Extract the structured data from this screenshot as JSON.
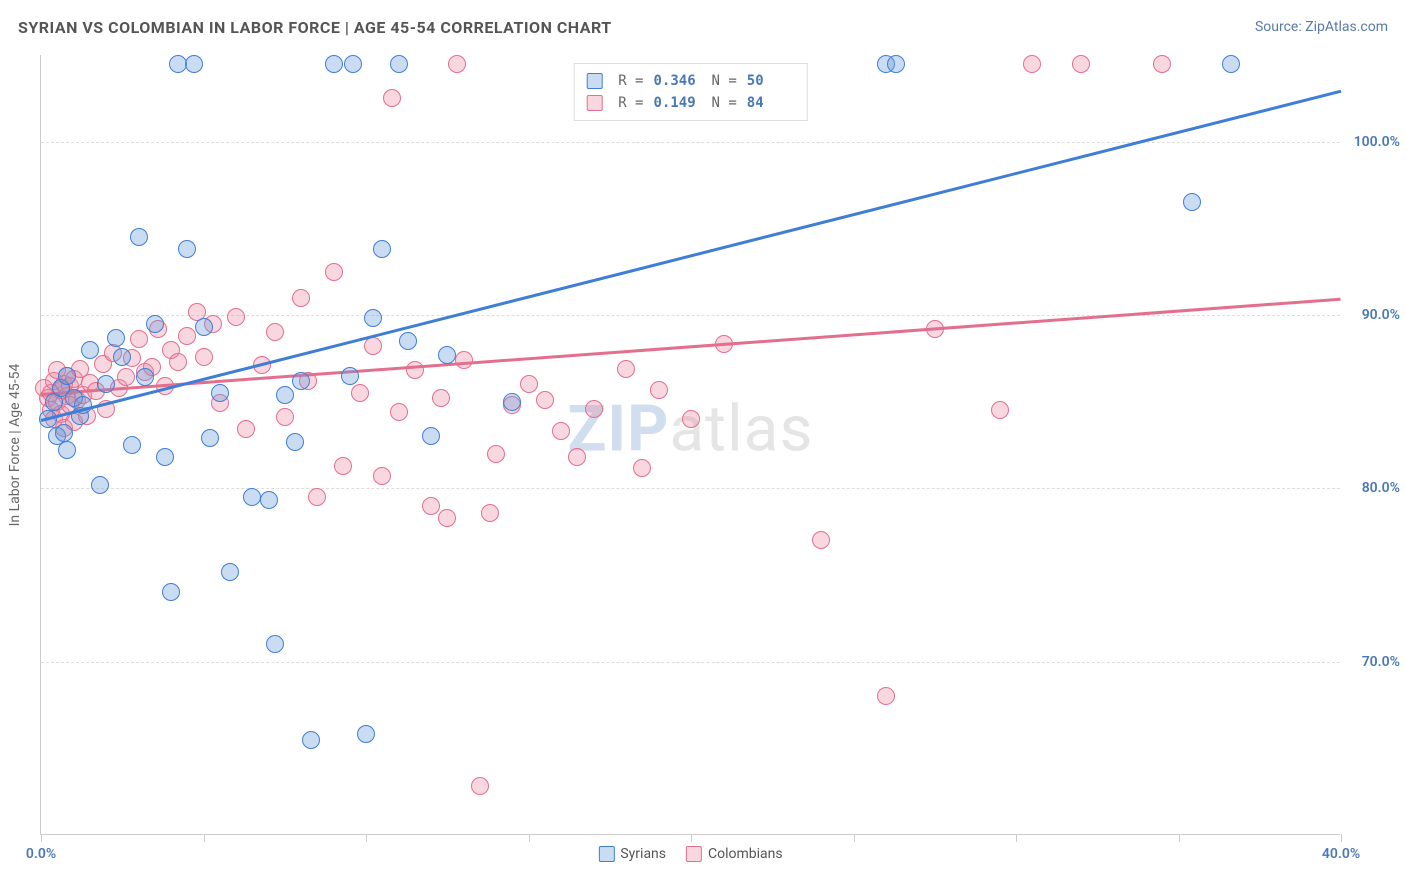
{
  "header": {
    "title": "SYRIAN VS COLOMBIAN IN LABOR FORCE | AGE 45-54 CORRELATION CHART",
    "source_prefix": "Source: ",
    "source_name": "ZipAtlas.com"
  },
  "watermark": {
    "zip": "ZIP",
    "atlas": "atlas"
  },
  "chart": {
    "type": "scatter",
    "background_color": "#ffffff",
    "grid_color": "#dddddd",
    "axis_color": "#cccccc",
    "value_color": "#4a78b5",
    "xlim": [
      0,
      40
    ],
    "ylim": [
      60,
      105
    ],
    "xticks": [
      0,
      5,
      10,
      15,
      20,
      25,
      30,
      35,
      40
    ],
    "xtick_labels": {
      "0": "0.0%",
      "40": "40.0%"
    },
    "yticks": [
      70,
      80,
      90,
      100
    ],
    "ytick_labels": {
      "70": "70.0%",
      "80": "80.0%",
      "90": "90.0%",
      "100": "100.0%"
    },
    "yaxis_title": "In Labor Force | Age 45-54",
    "marker_radius": 9,
    "marker_border_width": 1.5,
    "marker_fill_opacity": 0.35,
    "line_width": 2.5,
    "label_fontsize": 14,
    "title_fontsize": 15
  },
  "series": {
    "syrians": {
      "label": "Syrians",
      "color": "#3f7ed6",
      "fill": "rgba(99,155,219,0.35)",
      "R": "0.346",
      "N": "50",
      "regression": {
        "x1": 0,
        "y1": 84.0,
        "x2": 40,
        "y2": 103.0
      },
      "points": [
        [
          0.2,
          84
        ],
        [
          0.4,
          85
        ],
        [
          0.5,
          83
        ],
        [
          0.6,
          85.8
        ],
        [
          0.7,
          83.2
        ],
        [
          0.8,
          86.5
        ],
        [
          0.8,
          82.2
        ],
        [
          1.0,
          85.2
        ],
        [
          1.2,
          84.2
        ],
        [
          1.3,
          84.8
        ],
        [
          1.5,
          88
        ],
        [
          1.8,
          80.2
        ],
        [
          2.0,
          86
        ],
        [
          2.3,
          88.7
        ],
        [
          2.5,
          87.6
        ],
        [
          2.8,
          82.5
        ],
        [
          3.0,
          94.5
        ],
        [
          3.2,
          86.4
        ],
        [
          3.5,
          89.5
        ],
        [
          3.8,
          81.8
        ],
        [
          4.0,
          74
        ],
        [
          4.2,
          104.5
        ],
        [
          4.5,
          93.8
        ],
        [
          4.7,
          104.5
        ],
        [
          5.0,
          89.3
        ],
        [
          5.2,
          82.9
        ],
        [
          5.5,
          85.5
        ],
        [
          5.8,
          75.2
        ],
        [
          6.5,
          79.5
        ],
        [
          7.0,
          79.3
        ],
        [
          7.2,
          71
        ],
        [
          7.5,
          85.4
        ],
        [
          7.8,
          82.7
        ],
        [
          8.0,
          86.2
        ],
        [
          8.3,
          65.5
        ],
        [
          9.0,
          104.5
        ],
        [
          9.5,
          86.5
        ],
        [
          9.6,
          104.5
        ],
        [
          10.0,
          65.8
        ],
        [
          10.2,
          89.8
        ],
        [
          10.5,
          93.8
        ],
        [
          11.0,
          104.5
        ],
        [
          11.3,
          88.5
        ],
        [
          12.0,
          83.0
        ],
        [
          12.5,
          87.7
        ],
        [
          14.5,
          85.0
        ],
        [
          26.0,
          104.5
        ],
        [
          26.3,
          104.5
        ],
        [
          35.4,
          96.5
        ],
        [
          36.6,
          104.5
        ]
      ]
    },
    "colombians": {
      "label": "Colombians",
      "color": "#e36f8e",
      "fill": "rgba(235,140,165,0.35)",
      "R": "0.149",
      "N": "84",
      "regression": {
        "x1": 0,
        "y1": 85.5,
        "x2": 40,
        "y2": 91.0
      },
      "points": [
        [
          0.1,
          85.8
        ],
        [
          0.2,
          85.2
        ],
        [
          0.3,
          84.5
        ],
        [
          0.3,
          85.5
        ],
        [
          0.4,
          86.2
        ],
        [
          0.4,
          84.0
        ],
        [
          0.5,
          85.0
        ],
        [
          0.5,
          86.8
        ],
        [
          0.6,
          84.3
        ],
        [
          0.6,
          85.7
        ],
        [
          0.7,
          86.0
        ],
        [
          0.7,
          83.5
        ],
        [
          0.8,
          85.3
        ],
        [
          0.8,
          86.5
        ],
        [
          0.9,
          84.8
        ],
        [
          0.9,
          85.9
        ],
        [
          1.0,
          86.3
        ],
        [
          1.0,
          83.8
        ],
        [
          1.1,
          85.1
        ],
        [
          1.2,
          86.9
        ],
        [
          1.3,
          85.4
        ],
        [
          1.4,
          84.2
        ],
        [
          1.5,
          86.1
        ],
        [
          1.7,
          85.6
        ],
        [
          1.9,
          87.2
        ],
        [
          2.0,
          84.6
        ],
        [
          2.2,
          87.8
        ],
        [
          2.4,
          85.8
        ],
        [
          2.6,
          86.4
        ],
        [
          2.8,
          87.5
        ],
        [
          3.0,
          88.6
        ],
        [
          3.2,
          86.7
        ],
        [
          3.4,
          87.0
        ],
        [
          3.6,
          89.2
        ],
        [
          3.8,
          85.9
        ],
        [
          4.0,
          88.0
        ],
        [
          4.2,
          87.3
        ],
        [
          4.5,
          88.8
        ],
        [
          4.8,
          90.2
        ],
        [
          5.0,
          87.6
        ],
        [
          5.3,
          89.5
        ],
        [
          5.5,
          84.9
        ],
        [
          6.0,
          89.9
        ],
        [
          6.3,
          83.4
        ],
        [
          6.8,
          87.1
        ],
        [
          7.2,
          89.0
        ],
        [
          7.5,
          84.1
        ],
        [
          8.0,
          91.0
        ],
        [
          8.2,
          86.2
        ],
        [
          8.5,
          79.5
        ],
        [
          9.0,
          92.5
        ],
        [
          9.3,
          81.3
        ],
        [
          9.8,
          85.5
        ],
        [
          10.2,
          88.2
        ],
        [
          10.5,
          80.7
        ],
        [
          10.8,
          102.5
        ],
        [
          11.0,
          84.4
        ],
        [
          11.5,
          86.8
        ],
        [
          12.0,
          79.0
        ],
        [
          12.3,
          85.2
        ],
        [
          12.5,
          78.3
        ],
        [
          12.8,
          104.5
        ],
        [
          13.0,
          87.4
        ],
        [
          13.5,
          62.8
        ],
        [
          13.8,
          78.6
        ],
        [
          14.0,
          82.0
        ],
        [
          14.5,
          84.8
        ],
        [
          15.0,
          86.0
        ],
        [
          15.5,
          85.1
        ],
        [
          16.0,
          83.3
        ],
        [
          16.5,
          81.8
        ],
        [
          17.0,
          84.6
        ],
        [
          18.0,
          86.9
        ],
        [
          18.5,
          81.2
        ],
        [
          19.0,
          85.7
        ],
        [
          20.0,
          84.0
        ],
        [
          21.0,
          88.3
        ],
        [
          24.0,
          77.0
        ],
        [
          26.0,
          68.0
        ],
        [
          27.5,
          89.2
        ],
        [
          29.5,
          84.5
        ],
        [
          30.5,
          104.5
        ],
        [
          32.0,
          104.5
        ],
        [
          34.5,
          104.5
        ]
      ]
    }
  },
  "legend_top": {
    "r_label": "R =",
    "n_label": "N ="
  },
  "legend_bottom_order": [
    "syrians",
    "colombians"
  ]
}
